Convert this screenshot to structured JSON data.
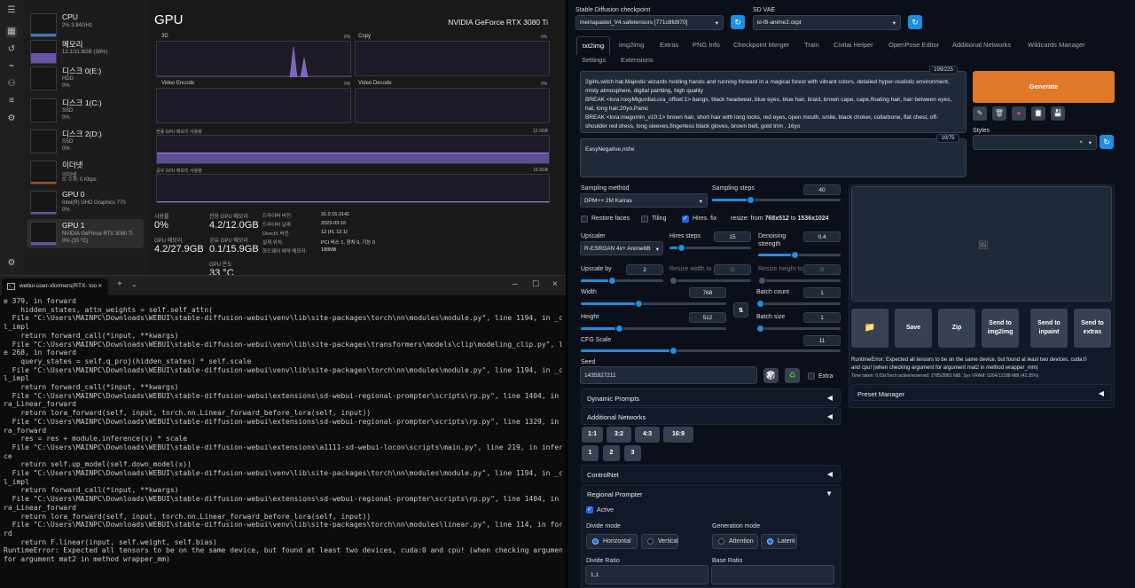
{
  "task_manager": {
    "rail_icons": [
      "hamburger-icon",
      "performance-icon",
      "history-icon",
      "startup-icon",
      "users-icon",
      "details-icon",
      "services-icon",
      "settings-icon"
    ],
    "items": [
      {
        "name": "CPU",
        "line1": "2% 3.84GHz",
        "line2": ""
      },
      {
        "name": "메모리",
        "line1": "12.1/31.8GB (38%)",
        "line2": ""
      },
      {
        "name": "디스크 0(E:)",
        "line1": "HDD",
        "line2": "0%"
      },
      {
        "name": "디스크 1(C:)",
        "line1": "SSD",
        "line2": "0%"
      },
      {
        "name": "디스크 2(D:)",
        "line1": "SSD",
        "line2": "0%"
      },
      {
        "name": "이더넷",
        "line1": "이더넷",
        "line2": "S: 0 R: 0 Kbps"
      },
      {
        "name": "GPU 0",
        "line1": "Intel(R) UHD Graphics 770",
        "line2": "0%"
      },
      {
        "name": "GPU 1",
        "line1": "NVIDIA GeForce RTX 3080 Ti",
        "line2": "0% (33 °C)"
      }
    ],
    "title": "GPU",
    "model": "NVIDIA GeForce RTX 3080 Ti",
    "graphs": {
      "g3d": "3D",
      "g3d_pct": "0%",
      "copy": "Copy",
      "copy_pct": "0%",
      "venc": "Video Encode",
      "venc_pct": "0%",
      "vdec": "Video Decode",
      "vdec_pct": "0%",
      "dedicated": "전용 GPU 메모리 사용량",
      "dedicated_max": "12.0GB",
      "shared": "공유 GPU 메모리 사용량",
      "shared_max": "15.9GB"
    },
    "stats": {
      "usage_k": "사용률",
      "usage_v": "0%",
      "ded_k": "전용 GPU 메모리",
      "ded_v": "4.2/12.0GB",
      "gpumem_k": "GPU 메모리",
      "gpumem_v": "4.2/27.9GB",
      "shared_k": "공유 GPU 메모리",
      "shared_v": "0.1/15.9GB",
      "temp_k": "GPU 온도",
      "temp_v": "33 °C"
    },
    "info": [
      {
        "k": "드라이버 버전:",
        "v": "31.0.15.3141"
      },
      {
        "k": "드라이버 날짜:",
        "v": "2023-03-16"
      },
      {
        "k": "DirectX 버전:",
        "v": "12 (FL 12.1)"
      },
      {
        "k": "실제 위치:",
        "v": "PCI 버스 1, 장치 0, 기능 0"
      },
      {
        "k": "하드웨어 예약 메모리:",
        "v": "188MB"
      }
    ]
  },
  "terminal": {
    "tab_title": "webui-user-xformers(RTX- too",
    "lines": [
      "e 379, in forward",
      "    hidden_states, attn_weights = self.self_attn(",
      "  File \"C:\\Users\\MAINPC\\Downloads\\WEBUI\\stable-diffusion-webui\\venv\\lib\\site-packages\\torch\\nn\\modules\\module.py\", line 1194, in _cal",
      "l_impl",
      "    return forward_call(*input, **kwargs)",
      "  File \"C:\\Users\\MAINPC\\Downloads\\WEBUI\\stable-diffusion-webui\\venv\\lib\\site-packages\\transformers\\models\\clip\\modeling_clip.py\", lin",
      "e 268, in forward",
      "    query_states = self.q_proj(hidden_states) * self.scale",
      "  File \"C:\\Users\\MAINPC\\Downloads\\WEBUI\\stable-diffusion-webui\\venv\\lib\\site-packages\\torch\\nn\\modules\\module.py\", line 1194, in _cal",
      "l_impl",
      "    return forward_call(*input, **kwargs)",
      "  File \"C:\\Users\\MAINPC\\Downloads\\WEBUI\\stable-diffusion-webui\\extensions\\sd-webui-regional-prompter\\scripts\\rp.py\", line 1404, in lo",
      "ra_Linear_forward",
      "    return lora_forward(self, input, torch.nn.Linear_forward_before_lora(self, input))",
      "  File \"C:\\Users\\MAINPC\\Downloads\\WEBUI\\stable-diffusion-webui\\extensions\\sd-webui-regional-prompter\\scripts\\rp.py\", line 1329, in lo",
      "ra_forward",
      "    res = res + module.inference(x) * scale",
      "  File \"C:\\Users\\MAINPC\\Downloads\\WEBUI\\stable-diffusion-webui\\extensions\\a1111-sd-webui-locon\\scripts\\main.py\", line 219, in inferen",
      "ce",
      "    return self.up_model(self.down_model(x))",
      "  File \"C:\\Users\\MAINPC\\Downloads\\WEBUI\\stable-diffusion-webui\\venv\\lib\\site-packages\\torch\\nn\\modules\\module.py\", line 1194, in _cal",
      "l_impl",
      "    return forward_call(*input, **kwargs)",
      "  File \"C:\\Users\\MAINPC\\Downloads\\WEBUI\\stable-diffusion-webui\\extensions\\sd-webui-regional-prompter\\scripts\\rp.py\", line 1404, in lo",
      "ra_Linear_forward",
      "    return lora_forward(self, input, torch.nn.Linear_forward_before_lora(self, input))",
      "  File \"C:\\Users\\MAINPC\\Downloads\\WEBUI\\stable-diffusion-webui\\venv\\lib\\site-packages\\torch\\nn\\modules\\linear.py\", line 114, in forwa",
      "rd",
      "    return F.linear(input, self.weight, self.bias)",
      "RuntimeError: Expected all tensors to be on the same device, but found at least two devices, cuda:0 and cpu! (when checking argument",
      "for argument mat2 in method wrapper_mm)"
    ]
  },
  "sd": {
    "checkpoint_label": "Stable Diffusion checkpoint",
    "checkpoint_value": "meinapastel_V4.safetensors [771c8fd970]",
    "vae_label": "SD VAE",
    "vae_value": "kl-f8-anime2.ckpt",
    "tabs": [
      "txt2img",
      "img2img",
      "Extras",
      "PNG Info",
      "Checkpoint Merger",
      "Train",
      "Civitai Helper",
      "OpenPose Editor",
      "Additional Networks",
      "Wildcards Manager",
      "Settings",
      "Extensions"
    ],
    "prompt_counter": "199/225",
    "prompt_lines": [
      "2girls,witch hat,Majestic wizards holding hands and running forward in a magical forest with vibrant colors, detailed hyper-realistic environment,",
      "misty atmosphere, digital painting, high quality",
      "BREAK  <lora:roxyMigurdiaLora_offset:1> bangs, black headwear, blue eyes, blue hair, braid, brown cape, cape,floating hair, hair between eyes,",
      "hat, long hair,20yo,Panic",
      "BREAK <lora:megumin_v10:1> brown hair, short hair with long locks, red eyes, open mouth, smile, black choker, collarbone, flat chest, off-",
      "shoulder red dress, long sleeves,fingerless black gloves, brown belt, gold trim , 16yo"
    ],
    "neg_counter": "10/75",
    "neg_prompt": "EasyNegative,nsfw",
    "generate": "Generate",
    "styles_label": "Styles",
    "sampling_method_label": "Sampling method",
    "sampling_method": "DPM++ 2M Karras",
    "sampling_steps_label": "Sampling steps",
    "sampling_steps": "40",
    "restore_faces": "Restore faces",
    "tiling": "Tiling",
    "hires_fix": "Hires. fix",
    "resize_note_prefix": "resize: from ",
    "resize_note_from": "768x512",
    "resize_note_mid": " to ",
    "resize_note_to": "1536x1024",
    "upscaler_label": "Upscaler",
    "upscaler": "R-ESRGAN 4x+ Anime6B",
    "hires_steps_label": "Hires steps",
    "hires_steps": "15",
    "denoise_label_1": "Denoising",
    "denoise_label_2": "strength",
    "denoise": "0.4",
    "upscale_by_label": "Upscale by",
    "upscale_by": "2",
    "resize_w_label": "Resize width to",
    "resize_w": "0",
    "resize_h_label": "Resize height to",
    "resize_h": "0",
    "width_label": "Width",
    "width": "768",
    "height_label": "Height",
    "height": "512",
    "batch_count_label": "Batch count",
    "batch_count": "1",
    "batch_size_label": "Batch size",
    "batch_size": "1",
    "cfg_label": "CFG Scale",
    "cfg": "11",
    "seed_label": "Seed",
    "seed": "1435927211",
    "extra": "Extra",
    "dynamic_prompts": "Dynamic Prompts",
    "additional_networks": "Additional Networks",
    "ratios": [
      "1:1",
      "3:2",
      "4:3",
      "16:9"
    ],
    "counts": [
      "1",
      "2",
      "3"
    ],
    "controlnet": "ControlNet",
    "regional_prompter": "Regional Prompter",
    "active": "Active",
    "divide_mode_label": "Divide mode",
    "horizontal": "Horizontal",
    "vertical": "Vertical",
    "generation_mode_label": "Generation mode",
    "attention": "Attention",
    "latent": "Latent",
    "divide_ratio_label": "Divide Ratio",
    "divide_ratio": "1,1",
    "base_ratio_label": "Base Ratio",
    "base_ratio": "",
    "out_buttons": [
      "Save",
      "Zip",
      "Send to img2img",
      "Send to inpaint",
      "Send to extras"
    ],
    "error_lines": [
      "RuntimeError: Expected all tensors to be on the same device, but found at least two devices, cuda:0",
      "and cpu! (when checking argument for argument mat2 in method wrapper_mm)"
    ],
    "time_taken": "Time taken: 0.03sTorch active/reserved: 2785/2882 MiB, Sys VRAM: 5204/12288 MiB (42.35%)",
    "preset_manager": "Preset Manager",
    "accent": "#1f8ee0",
    "generate_color": "#e0782a"
  }
}
